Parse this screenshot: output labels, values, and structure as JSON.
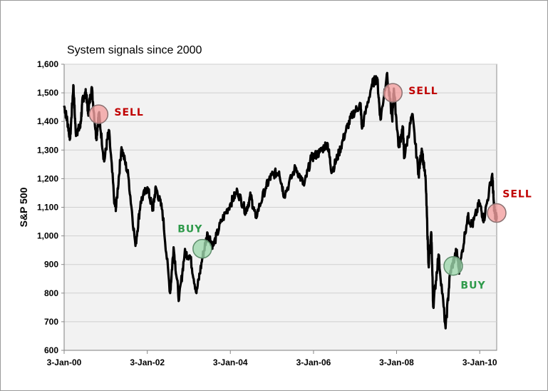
{
  "chart_data": {
    "type": "line",
    "title": "System signals since 2000",
    "xlabel": "",
    "ylabel": "S&P 500",
    "ylim": [
      600,
      1600
    ],
    "yticks": [
      600,
      700,
      800,
      900,
      1000,
      1100,
      1200,
      1300,
      1400,
      1500,
      1600
    ],
    "ytick_labels": [
      "600",
      "700",
      "800",
      "900",
      "1,000",
      "1,100",
      "1,200",
      "1,300",
      "1,400",
      "1,500",
      "1,600"
    ],
    "xlim": [
      "2000-01-03",
      "2010-06-01"
    ],
    "xticks": [
      "2000-01-03",
      "2002-01-03",
      "2004-01-03",
      "2006-01-03",
      "2008-01-03",
      "2010-01-03"
    ],
    "xtick_labels": [
      "3-Jan-00",
      "3-Jan-02",
      "3-Jan-04",
      "3-Jan-06",
      "3-Jan-08",
      "3-Jan-10"
    ],
    "grid": true,
    "line_color": "#000000",
    "plot_background": "#f2f2f2",
    "series": [
      {
        "points": [
          [
            "2000-01-03",
            1455
          ],
          [
            "2000-02-01",
            1400
          ],
          [
            "2000-02-25",
            1340
          ],
          [
            "2000-03-24",
            1527
          ],
          [
            "2000-04-14",
            1360
          ],
          [
            "2000-05-24",
            1380
          ],
          [
            "2000-06-15",
            1480
          ],
          [
            "2000-07-14",
            1500
          ],
          [
            "2000-08-01",
            1430
          ],
          [
            "2000-09-01",
            1520
          ],
          [
            "2000-10-12",
            1340
          ],
          [
            "2000-11-03",
            1430
          ],
          [
            "2000-12-20",
            1260
          ],
          [
            "2001-01-30",
            1370
          ],
          [
            "2001-03-22",
            1110
          ],
          [
            "2001-04-04",
            1100
          ],
          [
            "2001-05-21",
            1310
          ],
          [
            "2001-07-20",
            1210
          ],
          [
            "2001-09-21",
            965
          ],
          [
            "2001-11-06",
            1120
          ],
          [
            "2002-01-04",
            1170
          ],
          [
            "2002-02-20",
            1090
          ],
          [
            "2002-03-19",
            1170
          ],
          [
            "2002-05-15",
            1090
          ],
          [
            "2002-07-23",
            800
          ],
          [
            "2002-08-22",
            960
          ],
          [
            "2002-10-09",
            776
          ],
          [
            "2002-11-27",
            940
          ],
          [
            "2003-01-14",
            930
          ],
          [
            "2003-03-11",
            800
          ],
          [
            "2003-05-01",
            920
          ],
          [
            "2003-06-17",
            1010
          ],
          [
            "2003-08-05",
            965
          ],
          [
            "2003-10-15",
            1050
          ],
          [
            "2003-12-31",
            1110
          ],
          [
            "2004-03-05",
            1157
          ],
          [
            "2004-05-17",
            1085
          ],
          [
            "2004-06-30",
            1140
          ],
          [
            "2004-08-12",
            1064
          ],
          [
            "2004-11-10",
            1170
          ],
          [
            "2004-12-31",
            1212
          ],
          [
            "2005-03-07",
            1225
          ],
          [
            "2005-04-20",
            1140
          ],
          [
            "2005-07-29",
            1240
          ],
          [
            "2005-10-12",
            1176
          ],
          [
            "2005-12-14",
            1272
          ],
          [
            "2006-02-27",
            1292
          ],
          [
            "2006-05-05",
            1325
          ],
          [
            "2006-06-13",
            1223
          ],
          [
            "2006-08-15",
            1290
          ],
          [
            "2006-10-16",
            1370
          ],
          [
            "2006-12-15",
            1427
          ],
          [
            "2007-02-20",
            1460
          ],
          [
            "2007-03-05",
            1375
          ],
          [
            "2007-05-31",
            1530
          ],
          [
            "2007-07-16",
            1553
          ],
          [
            "2007-08-15",
            1406
          ],
          [
            "2007-10-09",
            1565
          ],
          [
            "2007-11-26",
            1407
          ],
          [
            "2007-12-10",
            1515
          ],
          [
            "2008-01-22",
            1310
          ],
          [
            "2008-02-27",
            1380
          ],
          [
            "2008-03-10",
            1273
          ],
          [
            "2008-05-19",
            1426
          ],
          [
            "2008-07-15",
            1214
          ],
          [
            "2008-08-11",
            1305
          ],
          [
            "2008-09-15",
            1192
          ],
          [
            "2008-10-10",
            899
          ],
          [
            "2008-11-04",
            1005
          ],
          [
            "2008-11-20",
            752
          ],
          [
            "2009-01-06",
            935
          ],
          [
            "2009-03-09",
            677
          ],
          [
            "2009-04-17",
            869
          ],
          [
            "2009-06-12",
            946
          ],
          [
            "2009-07-08",
            880
          ],
          [
            "2009-09-18",
            1068
          ],
          [
            "2009-10-30",
            1036
          ],
          [
            "2009-12-31",
            1115
          ],
          [
            "2010-02-08",
            1056
          ],
          [
            "2010-04-23",
            1217
          ],
          [
            "2010-05-07",
            1110
          ],
          [
            "2010-05-20",
            1071
          ],
          [
            "2010-06-01",
            1070
          ]
        ]
      }
    ],
    "signals": [
      {
        "label": "SELL",
        "type": "sell",
        "date": "2000-11-01",
        "value": 1425,
        "label_pos": "right"
      },
      {
        "label": "BUY",
        "type": "buy",
        "date": "2003-05-01",
        "value": 955,
        "label_pos": "above-left"
      },
      {
        "label": "SELL",
        "type": "sell",
        "date": "2007-12-01",
        "value": 1500,
        "label_pos": "right"
      },
      {
        "label": "BUY",
        "type": "buy",
        "date": "2009-05-15",
        "value": 895,
        "label_pos": "below-right"
      },
      {
        "label": "SELL",
        "type": "sell",
        "date": "2010-06-01",
        "value": 1080,
        "label_pos": "above"
      }
    ],
    "signal_colors": {
      "sell_fill": "#f2a0a0",
      "sell_stroke": "#8a7070",
      "sell_text": "#c00000",
      "buy_fill": "#9ed7ad",
      "buy_stroke": "#5f8d6c",
      "buy_text": "#2e9a4a"
    }
  }
}
